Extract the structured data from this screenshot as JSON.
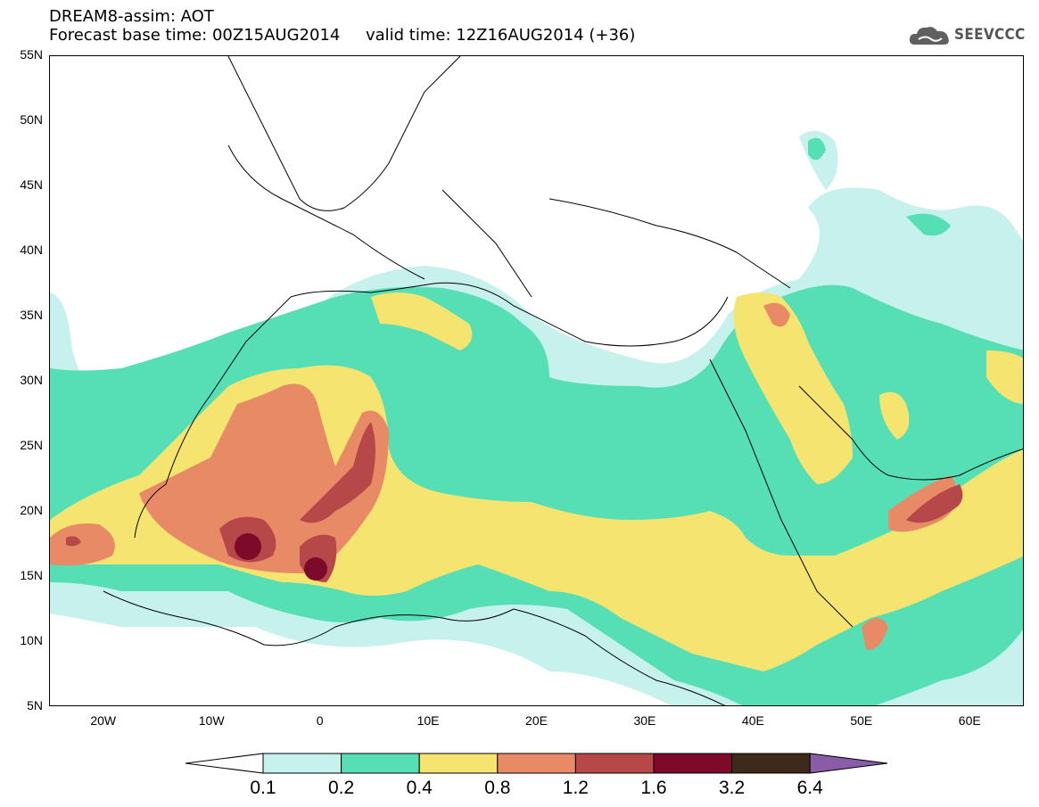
{
  "header": {
    "line1": "DREAM8-assim: AOT",
    "line2": "Forecast base time: 00Z15AUG2014     valid time: 12Z16AUG2014 (+36)"
  },
  "logo": {
    "text": "SEEVCCC",
    "icon": "cloud-logo-icon"
  },
  "map": {
    "lat_labels": [
      "55N",
      "50N",
      "45N",
      "40N",
      "35N",
      "30N",
      "25N",
      "20N",
      "15N",
      "10N",
      "5N"
    ],
    "lon_labels": [
      "20W",
      "10W",
      "0",
      "10E",
      "20E",
      "30E",
      "40E",
      "50E",
      "60E"
    ],
    "lon_range": [
      -25,
      65
    ],
    "lat_range": [
      5,
      55
    ]
  },
  "colorbar": {
    "labels": [
      "0.1",
      "0.2",
      "0.4",
      "0.8",
      "1.2",
      "1.6",
      "3.2",
      "6.4"
    ],
    "colors": [
      "#ffffff",
      "#c6f1ec",
      "#56dfb5",
      "#f6e471",
      "#e88a65",
      "#b6484a",
      "#7d0a28",
      "#3e2a1a",
      "#8a5ca8"
    ]
  }
}
